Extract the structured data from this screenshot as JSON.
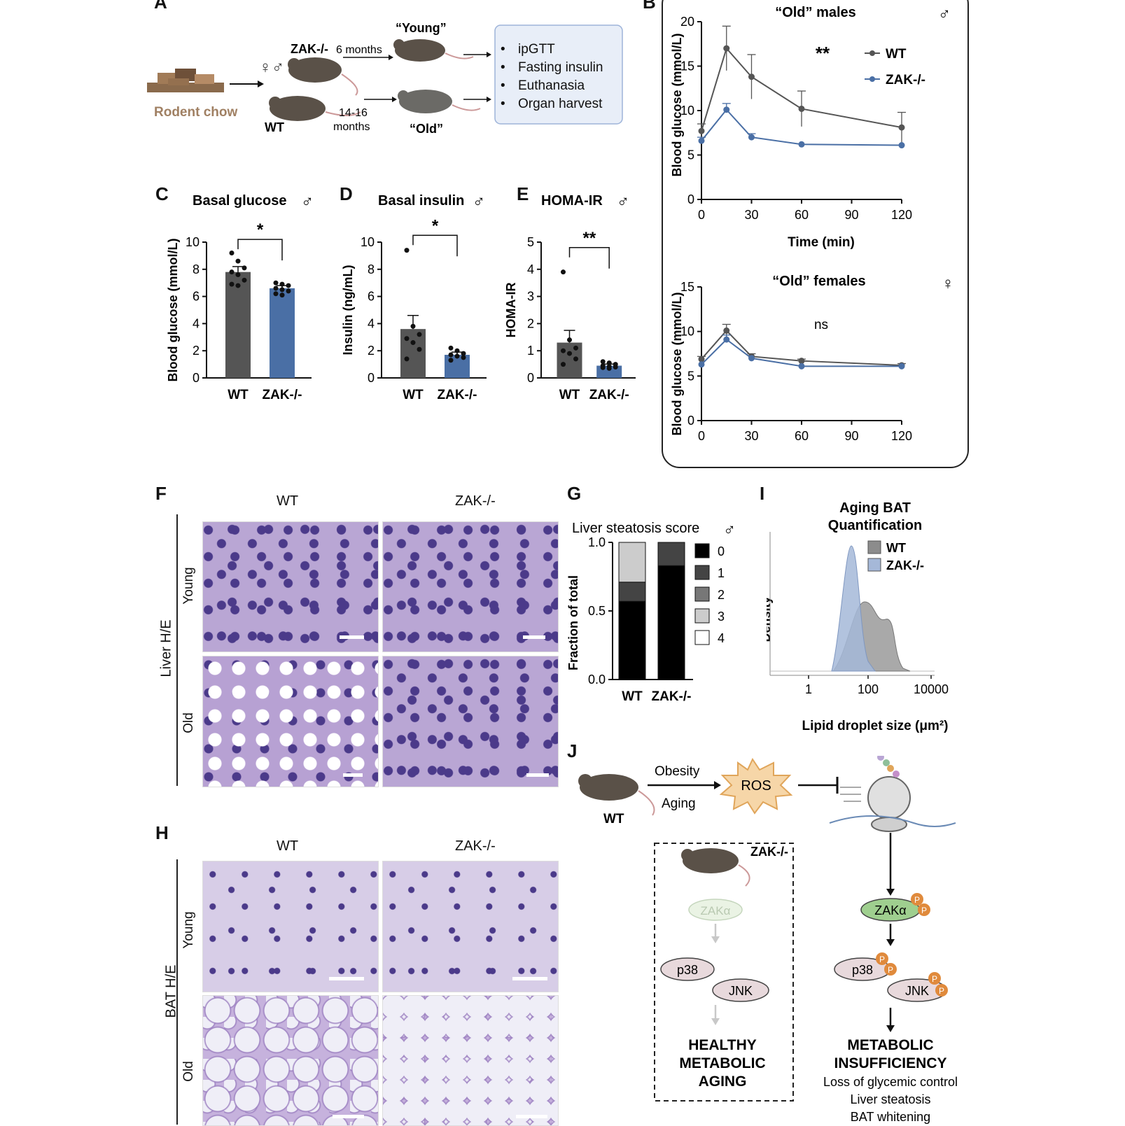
{
  "panels": {
    "A": "A",
    "B": "B",
    "C": "C",
    "D": "D",
    "E": "E",
    "F": "F",
    "G": "G",
    "H": "H",
    "I": "I",
    "J": "J"
  },
  "panel_a": {
    "chow_label": "Rodent chow",
    "sex_symbols": "♀♂",
    "zak_label": "ZAK-/-",
    "wt_label": "WT",
    "young_label": "“Young”",
    "old_label": "“Old”",
    "six_months": "6 months",
    "months_1416_a": "14-16",
    "months_1416_b": "months",
    "box_items": [
      "ipGTT",
      "Fasting insulin",
      "Euthanasia",
      "Organ harvest"
    ],
    "bullet": "•"
  },
  "panel_b": {
    "males_title": "“Old” males",
    "females_title": "“Old” females",
    "male_symbol": "♂",
    "female_symbol": "♀",
    "sig_males": "**",
    "sig_females": "ns",
    "legend_wt": "WT",
    "legend_zak": "ZAK-/-",
    "ylabel": "Blood glucose (mmol/L)",
    "xlabel": "Time (min)"
  },
  "panel_c": {
    "title": "Basal glucose",
    "symbol": "♂",
    "sig": "*",
    "ylabel": "Blood glucose (mmol/L)",
    "x1": "WT",
    "x2": "ZAK-/-"
  },
  "panel_d": {
    "title": "Basal insulin",
    "symbol": "♂",
    "sig": "*",
    "ylabel": "Insulin (ng/mL)",
    "x1": "WT",
    "x2": "ZAK-/-"
  },
  "panel_e": {
    "title": "HOMA-IR",
    "symbol": "♂",
    "sig": "**",
    "ylabel": "HOMA-IR",
    "x1": "WT",
    "x2": "ZAK-/-"
  },
  "panel_f": {
    "wt": "WT",
    "zak": "ZAK-/-",
    "side": "Liver H/E",
    "young": "Young",
    "old": "Old"
  },
  "panel_g": {
    "title": "Liver steatosis score",
    "symbol": "♂",
    "ylabel": "Fraction of total",
    "x1": "WT",
    "x2": "ZAK-/-",
    "legend": [
      "0",
      "1",
      "2",
      "3",
      "4"
    ]
  },
  "panel_h": {
    "wt": "WT",
    "zak": "ZAK-/-",
    "side": "BAT H/E",
    "young": "Young",
    "old": "Old"
  },
  "panel_i": {
    "title1": "Aging BAT",
    "title2": "Quantification",
    "ylabel": "Density",
    "xlabel": "Lipid droplet size (μm²)",
    "legend_wt": "WT",
    "legend_zak": "ZAK-/-"
  },
  "panel_j": {
    "wt": "WT",
    "obesity": "Obesity",
    "aging": "Aging",
    "ros": "ROS",
    "zak_ko": "ZAK-/-",
    "zaka": "ZAKα",
    "p38": "p38",
    "jnk": "JNK",
    "p": "P",
    "healthy": [
      "HEALTHY",
      "METABOLIC",
      "AGING"
    ],
    "insuff": [
      "METABOLIC",
      "INSUFFICIENCY"
    ],
    "outcomes": [
      "Loss of glycemic control",
      "Liver steatosis",
      "BAT whitening"
    ]
  },
  "colors": {
    "wt": "#555555",
    "zak": "#4a6fa5",
    "zak_light": "#a5b8d8",
    "box_bg": "#e8eef8",
    "box_border": "#9db3d9",
    "steatosis": [
      "#000000",
      "#444444",
      "#777777",
      "#cccccc",
      "#ffffff"
    ]
  },
  "chart_data": [
    {
      "type": "line",
      "title": "“Old” males",
      "xlabel": "Time (min)",
      "ylabel": "Blood glucose (mmol/L)",
      "x": [
        0,
        15,
        30,
        60,
        120
      ],
      "xlim": [
        0,
        120
      ],
      "ylim": [
        0,
        20
      ],
      "series": [
        {
          "name": "WT",
          "values": [
            7.7,
            17.0,
            13.8,
            10.2,
            8.1
          ],
          "err": [
            0.8,
            2.5,
            2.5,
            2.0,
            1.7
          ]
        },
        {
          "name": "ZAK-/-",
          "values": [
            6.6,
            10.1,
            7.0,
            6.2,
            6.1
          ],
          "err": [
            0.4,
            0.7,
            0.4,
            0.2,
            0.2
          ]
        }
      ]
    },
    {
      "type": "line",
      "title": "“Old” females",
      "ylabel": "Blood glucose (mmol/L)",
      "x": [
        0,
        15,
        30,
        60,
        120
      ],
      "xlim": [
        0,
        120
      ],
      "ylim": [
        0,
        15
      ],
      "series": [
        {
          "name": "WT",
          "values": [
            6.9,
            10.1,
            7.2,
            6.7,
            6.2
          ],
          "err": [
            0.3,
            0.7,
            0.3,
            0.2,
            0.2
          ]
        },
        {
          "name": "ZAK-/-",
          "values": [
            6.3,
            9.1,
            7.0,
            6.1,
            6.1
          ],
          "err": [
            0.3,
            0.5,
            0.3,
            0.2,
            0.2
          ]
        }
      ]
    },
    {
      "type": "bar",
      "title": "Basal glucose",
      "ylabel": "Blood glucose (mmol/L)",
      "categories": [
        "WT",
        "ZAK-/-"
      ],
      "values": [
        7.8,
        6.6
      ],
      "err": [
        0.4,
        0.2
      ],
      "ylim": [
        0,
        10
      ],
      "points": [
        [
          9.2,
          8.6,
          8.1,
          7.8,
          7.6,
          7.2,
          6.9,
          6.8
        ],
        [
          7.0,
          6.9,
          6.8,
          6.6,
          6.5,
          6.4,
          6.2,
          6.1
        ]
      ]
    },
    {
      "type": "bar",
      "title": "Basal insulin",
      "ylabel": "Insulin (ng/mL)",
      "categories": [
        "WT",
        "ZAK-/-"
      ],
      "values": [
        3.6,
        1.7
      ],
      "err": [
        1.0,
        0.2
      ],
      "ylim": [
        0,
        10
      ],
      "points": [
        [
          9.4,
          3.8,
          3.2,
          2.9,
          2.6,
          2.1,
          1.4
        ],
        [
          2.2,
          2.0,
          1.8,
          1.7,
          1.6,
          1.5,
          1.3
        ]
      ]
    },
    {
      "type": "bar",
      "title": "HOMA-IR",
      "ylabel": "HOMA-IR",
      "categories": [
        "WT",
        "ZAK-/-"
      ],
      "values": [
        1.3,
        0.45
      ],
      "err": [
        0.45,
        0.06
      ],
      "ylim": [
        0,
        5
      ],
      "points": [
        [
          3.9,
          1.4,
          1.1,
          1.0,
          0.9,
          0.7,
          0.5
        ],
        [
          0.6,
          0.55,
          0.5,
          0.45,
          0.42,
          0.4,
          0.38,
          0.35
        ]
      ]
    },
    {
      "type": "bar",
      "title": "Liver steatosis score",
      "ylabel": "Fraction of total",
      "categories": [
        "WT",
        "ZAK-/-"
      ],
      "ylim": [
        0,
        1
      ],
      "series": [
        {
          "name": "0",
          "values": [
            0.57,
            0.83
          ]
        },
        {
          "name": "1",
          "values": [
            0.14,
            0.17
          ]
        },
        {
          "name": "2",
          "values": [
            0.0,
            0.0
          ]
        },
        {
          "name": "3",
          "values": [
            0.29,
            0.0
          ]
        },
        {
          "name": "4",
          "values": [
            0.0,
            0.0
          ]
        }
      ]
    },
    {
      "type": "area",
      "title": "Aging BAT Quantification",
      "xlabel": "Lipid droplet size (μm²)",
      "ylabel": "Density",
      "xscale": "log",
      "xticks": [
        "1",
        "100",
        "10000"
      ],
      "series": [
        {
          "name": "WT"
        },
        {
          "name": "ZAK-/-"
        }
      ]
    }
  ]
}
